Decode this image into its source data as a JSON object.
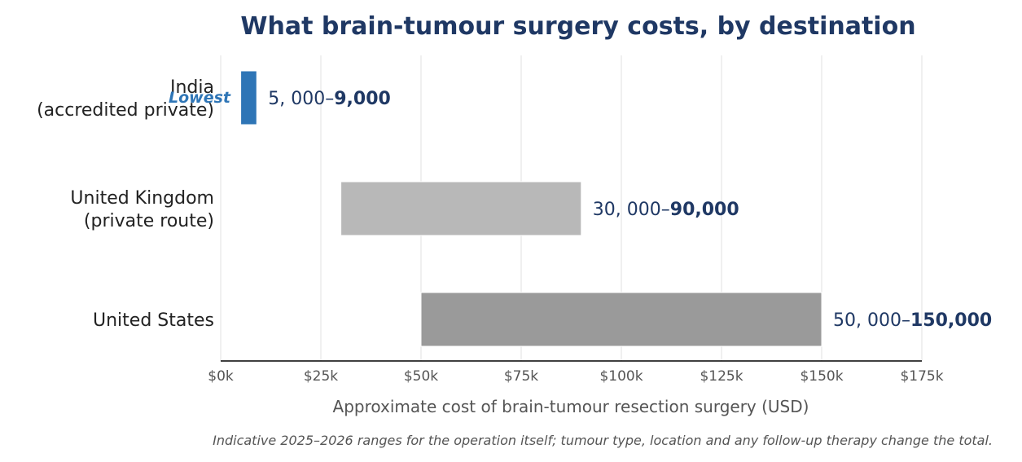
{
  "chart_data": {
    "type": "bar",
    "orientation": "horizontal-range",
    "title": "What brain-tumour surgery costs, by destination",
    "xlabel": "Approximate cost of brain-tumour resection surgery (USD)",
    "note": "Indicative 2025–2026 ranges for the operation itself; tumour type, location and any follow-up therapy change the total.",
    "xlim": [
      0,
      175000
    ],
    "xticks": [
      {
        "value": 0,
        "label": "$0k"
      },
      {
        "value": 25000,
        "label": "$25k"
      },
      {
        "value": 50000,
        "label": "$50k"
      },
      {
        "value": 75000,
        "label": "$75k"
      },
      {
        "value": 100000,
        "label": "$100k"
      },
      {
        "value": 125000,
        "label": "$125k"
      },
      {
        "value": 150000,
        "label": "$150k"
      },
      {
        "value": 175000,
        "label": "$175k"
      }
    ],
    "grid": true,
    "bars": [
      {
        "category_lines": [
          "India",
          "(accredited private)"
        ],
        "low": 5000,
        "high": 9000,
        "label_low": "5, 000–",
        "label_high": "9,000",
        "color": "#2e75b6",
        "badge": "Lowest"
      },
      {
        "category_lines": [
          "United Kingdom",
          "(private route)"
        ],
        "low": 30000,
        "high": 90000,
        "label_low": "30, 000–",
        "label_high": "90,000",
        "color": "#b8b8b8"
      },
      {
        "category_lines": [
          "United States"
        ],
        "low": 50000,
        "high": 150000,
        "label_low": "50, 000–",
        "label_high": "150,000",
        "color": "#9a9a9a"
      }
    ],
    "colors": {
      "title": "#1f3864",
      "value_label": "#1f3864",
      "highlight": "#2e75b6",
      "axis": "#000000",
      "grid": "#e6e6e6"
    }
  }
}
